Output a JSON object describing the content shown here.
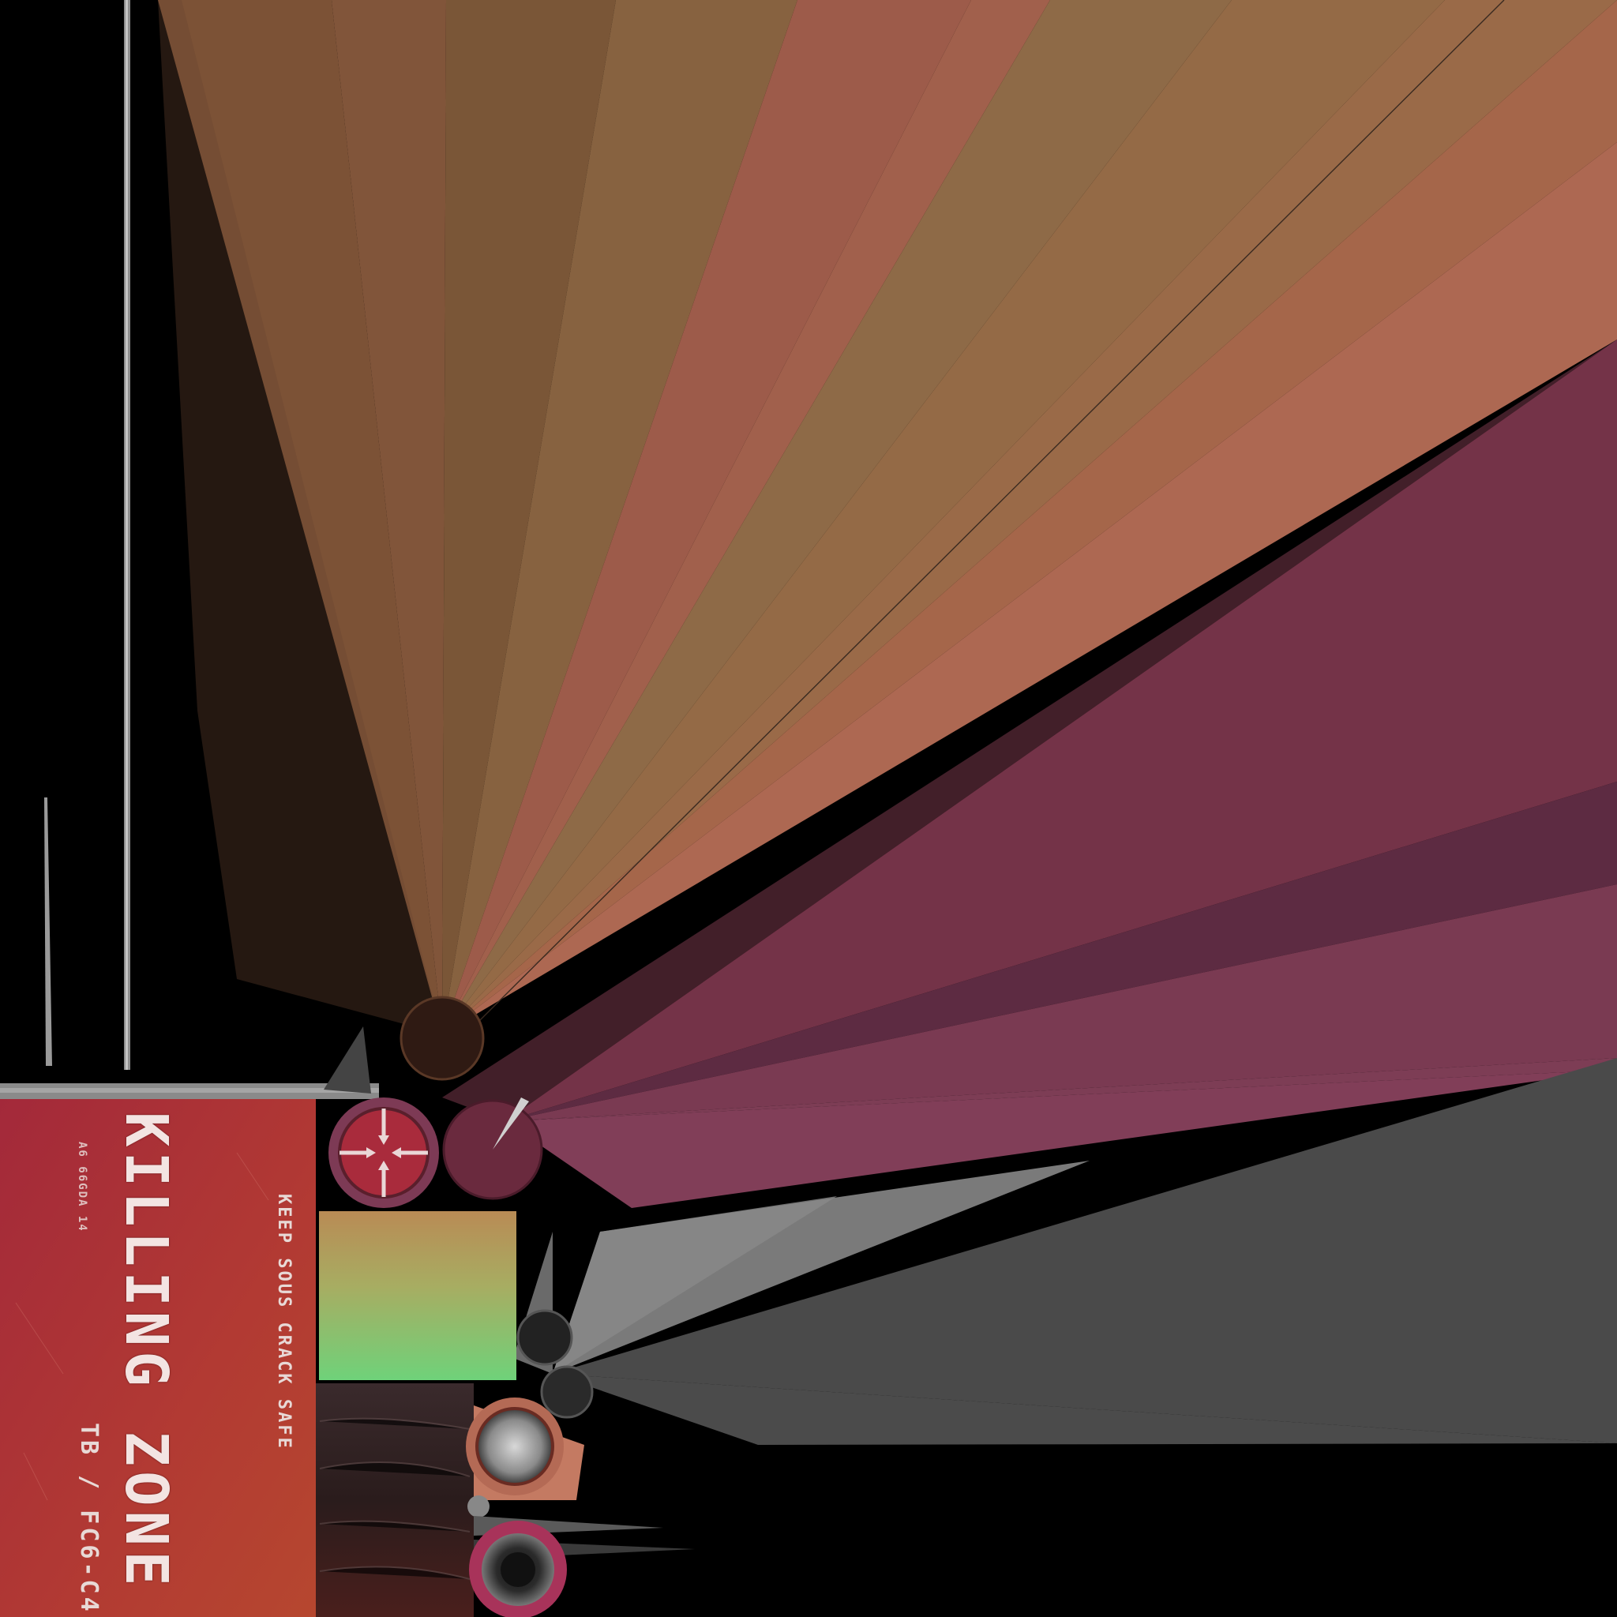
{
  "sticker": {
    "title": "KILLING ZONE",
    "warning": "KEEP SOUS CRACK SAFE",
    "code": "A6 66GDA 14",
    "ref": "TB / FC6-C4"
  },
  "colors": {
    "background": "#000000",
    "sticker_red": "#b13a33",
    "fan_orange": "#a8674b",
    "fan_magenta": "#763448",
    "fan_grey": "#4a4a4a",
    "green_panel": "#7ccf7a"
  },
  "icons": [
    "crosshair-arrows-icon"
  ]
}
